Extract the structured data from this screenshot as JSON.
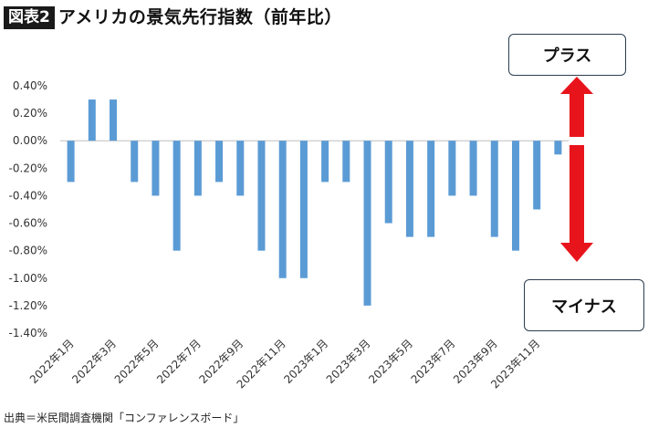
{
  "header": {
    "figure_label": "図表2",
    "title": "アメリカの景気先行指数（前年比）"
  },
  "callouts": {
    "plus": "プラス",
    "minus": "マイナス"
  },
  "source": "出典＝米民間調査機関「コンファレンスボード」",
  "colors": {
    "bar": "#5b9bd5",
    "arrow": "#e8141c",
    "axis": "#bfbfbf",
    "grid": "#d9d9d9"
  },
  "chart_data": {
    "type": "bar",
    "categories": [
      "2022年1月",
      "2022年2月",
      "2022年3月",
      "2022年4月",
      "2022年5月",
      "2022年6月",
      "2022年7月",
      "2022年8月",
      "2022年9月",
      "2022年10月",
      "2022年11月",
      "2022年12月",
      "2023年1月",
      "2023年2月",
      "2023年3月",
      "2023年4月",
      "2023年5月",
      "2023年6月",
      "2023年7月",
      "2023年8月",
      "2023年9月",
      "2023年10月",
      "2023年11月",
      "2023年12月"
    ],
    "tick_labels": [
      "2022年1月",
      "2022年3月",
      "2022年5月",
      "2022年7月",
      "2022年9月",
      "2022年11月",
      "2023年1月",
      "2023年3月",
      "2023年5月",
      "2023年7月",
      "2023年9月",
      "2023年11月"
    ],
    "values": [
      -0.3,
      0.3,
      0.3,
      -0.3,
      -0.4,
      -0.8,
      -0.4,
      -0.3,
      -0.4,
      -0.8,
      -1.0,
      -1.0,
      -0.3,
      -0.3,
      -1.2,
      -0.6,
      -0.7,
      -0.7,
      -0.4,
      -0.4,
      -0.7,
      -0.8,
      -0.5,
      -0.1
    ],
    "y_ticks": [
      "0.40%",
      "0.20%",
      "0.00%",
      "-0.20%",
      "-0.40%",
      "-0.60%",
      "-0.80%",
      "-1.00%",
      "-1.20%",
      "-1.40%"
    ],
    "ylim": [
      -1.4,
      0.4
    ],
    "grid": false,
    "xlabel": "",
    "ylabel": ""
  }
}
